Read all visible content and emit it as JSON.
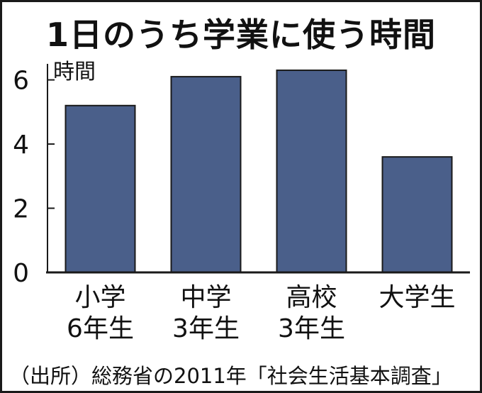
{
  "chart_data": {
    "type": "bar",
    "title": "1日のうち学業に使う時間",
    "ylabel": "時間",
    "xlabel": "",
    "categories": [
      "小学\n6年生",
      "中学\n3年生",
      "高校\n3年生",
      "大学生"
    ],
    "values": [
      5.2,
      6.1,
      6.3,
      3.6
    ],
    "ylim": [
      0,
      6.5
    ],
    "yticks": [
      0,
      2,
      4,
      6
    ],
    "grid": false,
    "legend": "none",
    "bar_color": "#4a5f8a",
    "bar_edge_color": "#1a1a1a"
  },
  "source": "（出所）総務省の2011年「社会生活基本調査」"
}
